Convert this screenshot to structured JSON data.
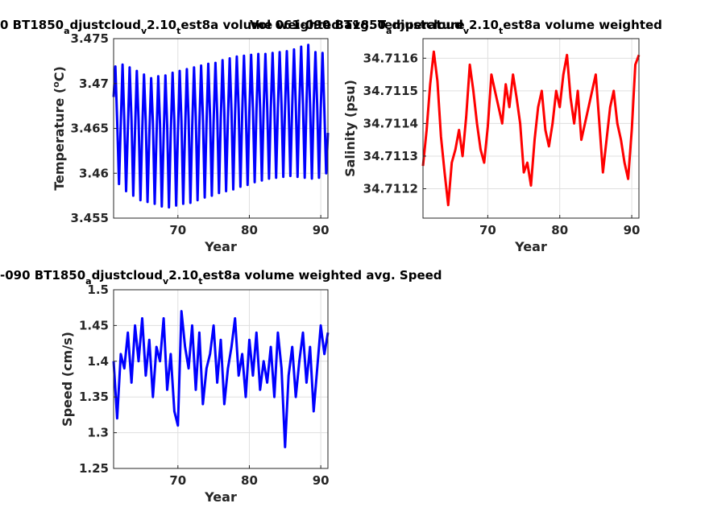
{
  "figure": {
    "background": "#ffffff"
  },
  "chart_data": [
    {
      "type": "line",
      "title_parts": [
        "0 BT1850",
        "a",
        "djustcloud",
        "v",
        "2.10",
        "t",
        "est8a volume weighted avg. Temperature"
      ],
      "xlabel": "Year",
      "ylabel": "Temperature (",
      "ylabel_sup": "o",
      "ylabel_tail": "C)",
      "xlim": [
        61,
        91
      ],
      "ylim": [
        3.455,
        3.475
      ],
      "xticks": [
        70,
        80,
        90
      ],
      "xtick_labels": [
        "70",
        "80",
        "90"
      ],
      "yticks": [
        3.455,
        3.46,
        3.465,
        3.47,
        3.475
      ],
      "ytick_labels": [
        "3.455",
        "3.46",
        "3.465",
        "3.47",
        "3.475"
      ],
      "grid": true,
      "color": "#0000ff",
      "series": [
        {
          "x": [
            61.0,
            61.25,
            61.5,
            61.75,
            62.0,
            62.25,
            62.5,
            62.75,
            63.0,
            63.25,
            63.5,
            63.75,
            64.0,
            64.25,
            64.5,
            64.75,
            65.0,
            65.25,
            65.5,
            65.75,
            66.0,
            66.25,
            66.5,
            66.75,
            67.0,
            67.25,
            67.5,
            67.75,
            68.0,
            68.25,
            68.5,
            68.75,
            69.0,
            69.25,
            69.5,
            69.75,
            70.0,
            70.25,
            70.5,
            70.75,
            71.0,
            71.25,
            71.5,
            71.75,
            72.0,
            72.25,
            72.5,
            72.75,
            73.0,
            73.25,
            73.5,
            73.75,
            74.0,
            74.25,
            74.5,
            74.75,
            75.0,
            75.25,
            75.5,
            75.75,
            76.0,
            76.25,
            76.5,
            76.75,
            77.0,
            77.25,
            77.5,
            77.75,
            78.0,
            78.25,
            78.5,
            78.75,
            79.0,
            79.25,
            79.5,
            79.75,
            80.0,
            80.25,
            80.5,
            80.75,
            81.0,
            81.25,
            81.5,
            81.75,
            82.0,
            82.25,
            82.5,
            82.75,
            83.0,
            83.25,
            83.5,
            83.75,
            84.0,
            84.25,
            84.5,
            84.75,
            85.0,
            85.25,
            85.5,
            85.75,
            86.0,
            86.25,
            86.5,
            86.75,
            87.0,
            87.25,
            87.5,
            87.75,
            88.0,
            88.25,
            88.5,
            88.75,
            89.0,
            89.25,
            89.5,
            89.75,
            90.0,
            90.25,
            90.5,
            90.75,
            91.0
          ],
          "y": [
            3.4685,
            3.4719,
            3.4659,
            3.4588,
            3.4655,
            3.4721,
            3.4658,
            3.458,
            3.465,
            3.4718,
            3.466,
            3.4575,
            3.4648,
            3.4714,
            3.4659,
            3.457,
            3.4646,
            3.471,
            3.4658,
            3.4568,
            3.4642,
            3.4706,
            3.4656,
            3.4566,
            3.464,
            3.4708,
            3.4655,
            3.4563,
            3.4641,
            3.4709,
            3.4653,
            3.4562,
            3.4643,
            3.4712,
            3.4657,
            3.4564,
            3.4645,
            3.4714,
            3.4658,
            3.4566,
            3.4648,
            3.4716,
            3.466,
            3.4567,
            3.465,
            3.4718,
            3.4662,
            3.457,
            3.4653,
            3.472,
            3.4664,
            3.4573,
            3.4655,
            3.4722,
            3.4665,
            3.4575,
            3.4657,
            3.4723,
            3.4666,
            3.4578,
            3.466,
            3.4726,
            3.4668,
            3.458,
            3.4662,
            3.4728,
            3.467,
            3.4582,
            3.4665,
            3.473,
            3.4671,
            3.4585,
            3.4666,
            3.4731,
            3.4672,
            3.4587,
            3.4668,
            3.4732,
            3.4673,
            3.459,
            3.467,
            3.4733,
            3.4674,
            3.4592,
            3.4671,
            3.4733,
            3.4675,
            3.4594,
            3.4672,
            3.4734,
            3.4675,
            3.4595,
            3.4673,
            3.4735,
            3.4676,
            3.4596,
            3.4674,
            3.4736,
            3.4676,
            3.4597,
            3.4675,
            3.4738,
            3.4677,
            3.4596,
            3.4676,
            3.4741,
            3.4678,
            3.4595,
            3.4677,
            3.4743,
            3.4678,
            3.4594,
            3.4676,
            3.4735,
            3.4675,
            3.4595,
            3.4672,
            3.4734,
            3.467,
            3.46,
            3.4645
          ]
        }
      ]
    },
    {
      "type": "line",
      "title_parts": [
        "Vol 061-090 BT1850",
        "a",
        "djustcloud",
        "v",
        "2.10",
        "t",
        "est8a volume weighted"
      ],
      "xlabel": "Year",
      "ylabel": "Salinity (psu)",
      "xlim": [
        61,
        91
      ],
      "ylim": [
        34.71111,
        34.71166
      ],
      "xticks": [
        70,
        80,
        90
      ],
      "xtick_labels": [
        "70",
        "80",
        "90"
      ],
      "yticks": [
        34.7112,
        34.7113,
        34.7114,
        34.7115,
        34.7116
      ],
      "ytick_labels": [
        "34.7112",
        "34.7113",
        "34.7114",
        "34.7115",
        "34.7116"
      ],
      "grid": true,
      "color": "#ff0000",
      "series": [
        {
          "x": [
            61.0,
            61.5,
            62.0,
            62.5,
            63.0,
            63.5,
            64.0,
            64.5,
            65.0,
            65.5,
            66.0,
            66.5,
            67.0,
            67.5,
            68.0,
            68.5,
            69.0,
            69.5,
            70.0,
            70.5,
            71.0,
            71.5,
            72.0,
            72.5,
            73.0,
            73.5,
            74.0,
            74.5,
            75.0,
            75.5,
            76.0,
            76.5,
            77.0,
            77.5,
            78.0,
            78.5,
            79.0,
            79.5,
            80.0,
            80.5,
            81.0,
            81.5,
            82.0,
            82.5,
            83.0,
            83.5,
            84.0,
            84.5,
            85.0,
            85.5,
            86.0,
            86.5,
            87.0,
            87.5,
            88.0,
            88.5,
            89.0,
            89.5,
            90.0,
            90.5,
            91.0
          ],
          "y": [
            34.71127,
            34.71138,
            34.71152,
            34.71162,
            34.71153,
            34.71136,
            34.71125,
            34.71115,
            34.71128,
            34.71132,
            34.71138,
            34.7113,
            34.71142,
            34.71158,
            34.7115,
            34.7114,
            34.71132,
            34.71128,
            34.71139,
            34.71155,
            34.7115,
            34.71145,
            34.7114,
            34.71152,
            34.71145,
            34.71155,
            34.71148,
            34.7114,
            34.71125,
            34.71128,
            34.71121,
            34.71135,
            34.71145,
            34.7115,
            34.71138,
            34.71133,
            34.7114,
            34.7115,
            34.71145,
            34.71155,
            34.71161,
            34.71148,
            34.7114,
            34.7115,
            34.71135,
            34.7114,
            34.71145,
            34.7115,
            34.71155,
            34.7114,
            34.71125,
            34.71135,
            34.71145,
            34.7115,
            34.7114,
            34.71135,
            34.71128,
            34.71123,
            34.71138,
            34.71158,
            34.71161
          ]
        }
      ]
    },
    {
      "type": "line",
      "title_parts": [
        "-090 BT1850",
        "a",
        "djustcloud",
        "v",
        "2.10",
        "t",
        "est8a volume weighted avg. Speed"
      ],
      "xlabel": "Year",
      "ylabel": "Speed (cm/s)",
      "xlim": [
        61,
        91
      ],
      "ylim": [
        1.25,
        1.5
      ],
      "xticks": [
        70,
        80,
        90
      ],
      "xtick_labels": [
        "70",
        "80",
        "90"
      ],
      "yticks": [
        1.25,
        1.3,
        1.35,
        1.4,
        1.45,
        1.5
      ],
      "ytick_labels": [
        "1.25",
        "1.3",
        "1.35",
        "1.4",
        "1.45",
        "1.5"
      ],
      "grid": true,
      "color": "#0000ff",
      "series": [
        {
          "x": [
            61.0,
            61.5,
            62.0,
            62.5,
            63.0,
            63.5,
            64.0,
            64.5,
            65.0,
            65.5,
            66.0,
            66.5,
            67.0,
            67.5,
            68.0,
            68.5,
            69.0,
            69.5,
            70.0,
            70.5,
            71.0,
            71.5,
            72.0,
            72.5,
            73.0,
            73.5,
            74.0,
            74.5,
            75.0,
            75.5,
            76.0,
            76.5,
            77.0,
            77.5,
            78.0,
            78.5,
            79.0,
            79.5,
            80.0,
            80.5,
            81.0,
            81.5,
            82.0,
            82.5,
            83.0,
            83.5,
            84.0,
            84.5,
            85.0,
            85.5,
            86.0,
            86.5,
            87.0,
            87.5,
            88.0,
            88.5,
            89.0,
            89.5,
            90.0,
            90.5,
            91.0
          ],
          "y": [
            1.4,
            1.32,
            1.41,
            1.39,
            1.44,
            1.37,
            1.45,
            1.4,
            1.46,
            1.38,
            1.43,
            1.35,
            1.42,
            1.4,
            1.46,
            1.36,
            1.41,
            1.33,
            1.31,
            1.47,
            1.42,
            1.39,
            1.45,
            1.36,
            1.44,
            1.34,
            1.39,
            1.41,
            1.45,
            1.37,
            1.43,
            1.34,
            1.39,
            1.42,
            1.46,
            1.38,
            1.41,
            1.35,
            1.43,
            1.38,
            1.44,
            1.36,
            1.4,
            1.37,
            1.42,
            1.35,
            1.44,
            1.39,
            1.28,
            1.38,
            1.42,
            1.35,
            1.4,
            1.44,
            1.37,
            1.42,
            1.33,
            1.39,
            1.45,
            1.41,
            1.44
          ]
        }
      ]
    }
  ]
}
